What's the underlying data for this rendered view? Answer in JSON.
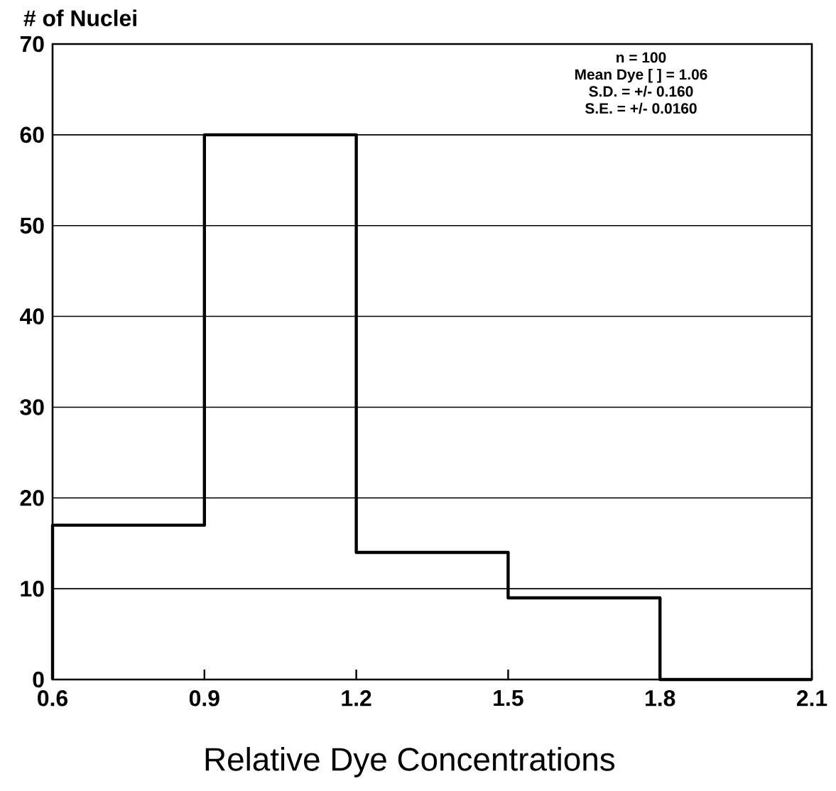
{
  "chart_data": {
    "type": "histogram",
    "xlabel": "Relative Dye Concentrations",
    "ylabel": "# of Nuclei",
    "bins": [
      0.6,
      0.9,
      1.2,
      1.5,
      1.8,
      2.1
    ],
    "values": [
      17,
      60,
      14,
      9,
      0
    ],
    "color": "#000000",
    "xlim": [
      0.6,
      2.1
    ],
    "ylim": [
      0,
      70
    ],
    "xticks": [
      0.6,
      0.9,
      1.2,
      1.5,
      1.8,
      2.1
    ],
    "yticks": [
      0,
      10,
      20,
      30,
      40,
      50,
      60,
      70
    ],
    "grid": "y",
    "annotations": [
      "n = 100",
      "Mean Dye [ ] = 1.06",
      "S.D. = +/- 0.160",
      "S.E. = +/- 0.0160"
    ]
  }
}
